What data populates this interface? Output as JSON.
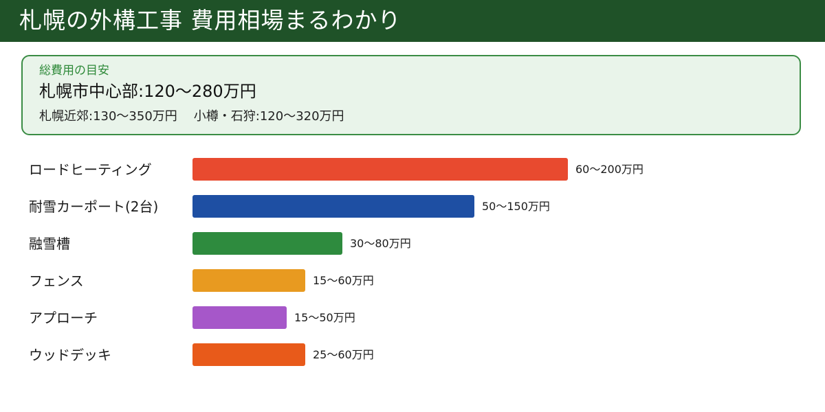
{
  "header": {
    "title": "札幌の外構工事 費用相場まるわかり"
  },
  "summary": {
    "label": "総費用の目安",
    "main": "札幌市中心部:120〜280万円",
    "sub_left": "札幌近郊:130〜350万円",
    "sub_right": "小樽・石狩:120〜320万円"
  },
  "chart_data": {
    "type": "bar",
    "orientation": "horizontal",
    "unit": "万円",
    "categories": [
      "ロードヒーティング",
      "耐雪カーポート(2台)",
      "融雪槽",
      "フェンス",
      "アプローチ",
      "ウッドデッキ"
    ],
    "ranges": [
      [
        60,
        200
      ],
      [
        50,
        150
      ],
      [
        30,
        80
      ],
      [
        15,
        60
      ],
      [
        15,
        50
      ],
      [
        25,
        60
      ]
    ],
    "values": [
      200,
      150,
      80,
      60,
      50,
      60
    ],
    "value_labels": [
      "60〜200万円",
      "50〜150万円",
      "30〜80万円",
      "15〜60万円",
      "15〜50万円",
      "25〜60万円"
    ],
    "colors": [
      "#e84a2f",
      "#1e4fa3",
      "#2e8b3e",
      "#e89a20",
      "#a657c9",
      "#e85a1a"
    ],
    "grid": false,
    "legend": "none"
  }
}
